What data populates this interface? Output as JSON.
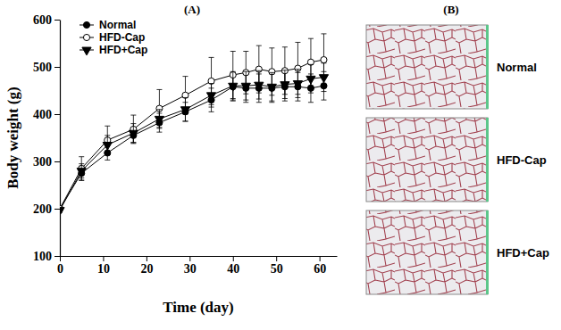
{
  "chart_data": [
    {
      "type": "line",
      "title": "(A)",
      "x_label": "Time (day)",
      "y_label": "Body weight (g)",
      "x": [
        0,
        5,
        11,
        17,
        23,
        29,
        35,
        40,
        43,
        46,
        49,
        52,
        55,
        58,
        61
      ],
      "xlim": [
        0,
        64
      ],
      "xticks": [
        0,
        10,
        20,
        30,
        40,
        50,
        60
      ],
      "ylim": [
        100,
        600
      ],
      "yticks": [
        100,
        200,
        300,
        400,
        500,
        600
      ],
      "grid": false,
      "legend": "upper left",
      "series": [
        {
          "name": "Normal",
          "color": "#000000",
          "marker": "circle",
          "values": [
            200,
            275,
            318,
            355,
            382,
            405,
            430,
            458,
            455,
            455,
            455,
            458,
            458,
            455,
            460
          ],
          "error": [
            5,
            15,
            15,
            15,
            20,
            20,
            25,
            30,
            30,
            30,
            30,
            30,
            30,
            30,
            30
          ]
        },
        {
          "name": "HFD-Cap",
          "color": "#000000",
          "marker": "open-circle",
          "values": [
            200,
            285,
            345,
            368,
            412,
            440,
            470,
            483,
            488,
            495,
            490,
            492,
            497,
            510,
            515
          ],
          "error": [
            5,
            25,
            30,
            30,
            40,
            40,
            50,
            50,
            45,
            50,
            50,
            50,
            55,
            50,
            55
          ]
        },
        {
          "name": "HFD+Cap",
          "color": "#000000",
          "marker": "triangle-down",
          "values": [
            197,
            280,
            335,
            360,
            390,
            410,
            440,
            460,
            460,
            462,
            458,
            463,
            465,
            475,
            478
          ],
          "error": [
            5,
            15,
            20,
            20,
            20,
            25,
            25,
            30,
            30,
            30,
            30,
            30,
            30,
            30,
            30
          ]
        }
      ]
    },
    {
      "type": "image",
      "title": "(B)",
      "panels": [
        "Normal",
        "HFD-Cap",
        "HFD+Cap"
      ]
    }
  ]
}
